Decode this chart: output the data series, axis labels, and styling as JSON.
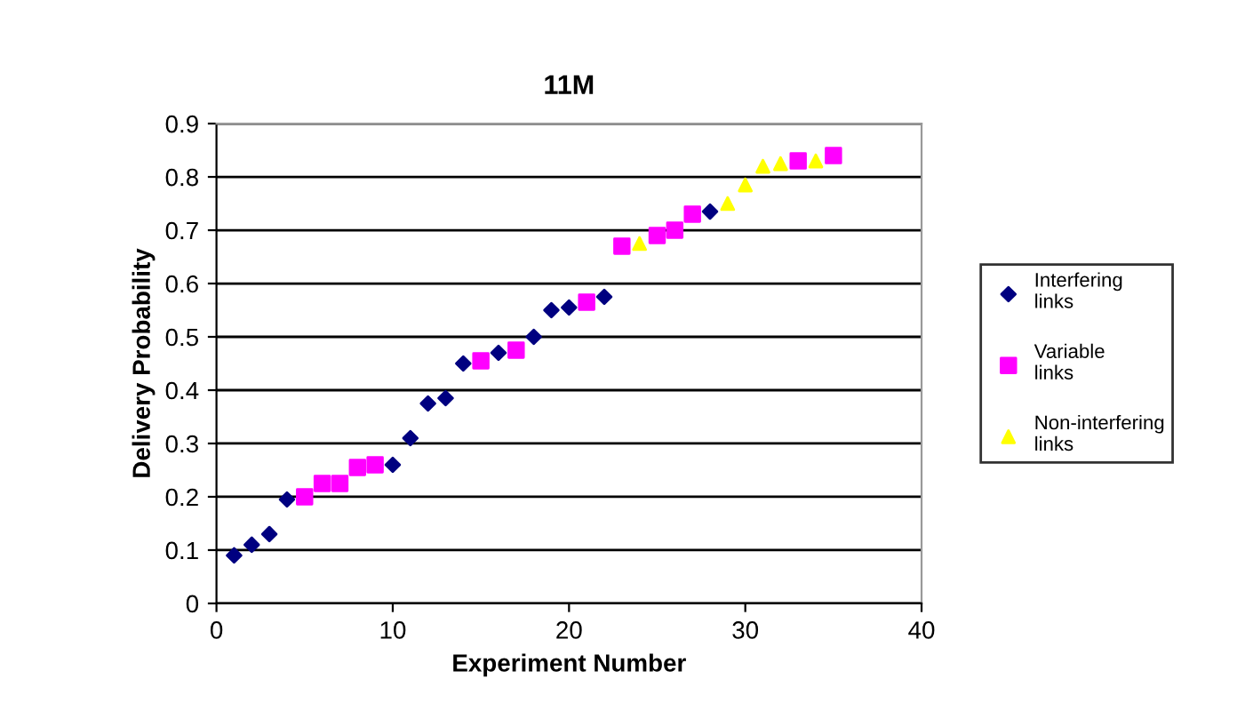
{
  "chart_data": {
    "type": "scatter",
    "title": "11M",
    "xlabel": "Experiment Number",
    "ylabel": "Delivery Probability",
    "xlim": [
      0,
      40
    ],
    "xticks": [
      0,
      10,
      20,
      30,
      40
    ],
    "ylim": [
      0,
      0.9
    ],
    "yticks": [
      0,
      0.1,
      0.2,
      0.3,
      0.4,
      0.5,
      0.6,
      0.7,
      0.8,
      0.9
    ],
    "grid": "y",
    "legend": "right",
    "series": [
      {
        "name": "Interfering links",
        "color": "#000080",
        "marker": "diamond",
        "x": [
          1,
          2,
          3,
          4,
          10,
          11,
          12,
          13,
          14,
          16,
          18,
          19,
          20,
          22,
          28
        ],
        "values": [
          0.09,
          0.11,
          0.13,
          0.195,
          0.26,
          0.31,
          0.375,
          0.385,
          0.45,
          0.47,
          0.5,
          0.55,
          0.555,
          0.575,
          0.735
        ]
      },
      {
        "name": "Variable links",
        "color": "#ff00ff",
        "marker": "square",
        "x": [
          5,
          6,
          7,
          8,
          9,
          15,
          17,
          21,
          23,
          25,
          26,
          27,
          33,
          35
        ],
        "values": [
          0.2,
          0.225,
          0.225,
          0.255,
          0.26,
          0.455,
          0.475,
          0.565,
          0.67,
          0.69,
          0.7,
          0.73,
          0.83,
          0.84
        ]
      },
      {
        "name": "Non-interfering links",
        "color": "#ffff00",
        "marker": "triangle",
        "x": [
          24,
          29,
          30,
          31,
          32,
          34
        ],
        "values": [
          0.675,
          0.75,
          0.785,
          0.82,
          0.825,
          0.83
        ]
      }
    ]
  }
}
